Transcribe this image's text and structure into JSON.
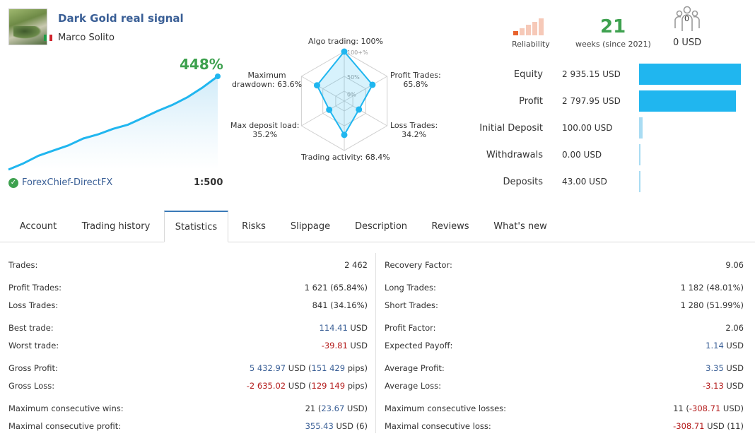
{
  "signal": {
    "title": "Dark Gold real signal",
    "author": "Marco Solito",
    "growth": "448%",
    "growth_curve": [
      0,
      18,
      40,
      55,
      70,
      90,
      102,
      118,
      130,
      150,
      170,
      188,
      210,
      238,
      270
    ],
    "broker": "ForexChief-DirectFX",
    "leverage": "1:500"
  },
  "radar": {
    "scale_labels": [
      "100+%",
      "50%",
      "0%"
    ],
    "axes": [
      {
        "label": "Algo trading: 100%",
        "value": 100
      },
      {
        "label": "Profit Trades:\n65.8%",
        "value": 65.8
      },
      {
        "label": "Loss Trades:\n34.2%",
        "value": 34.2
      },
      {
        "label": "Trading activity: 68.4%",
        "value": 68.4
      },
      {
        "label": "Max deposit load:\n35.2%",
        "value": 35.2
      },
      {
        "label": "Maximum\ndrawdown: 63.6%",
        "value": 63.6
      }
    ]
  },
  "reliability": {
    "label": "Reliability",
    "filled_bars": 1,
    "total_bars": 5
  },
  "weeks": {
    "number": "21",
    "label": "weeks (since 2021)"
  },
  "subscribers": {
    "count": "0",
    "price": "0 USD"
  },
  "financials": [
    {
      "label": "Equity",
      "value": "2 935.15 USD",
      "fraction": 1.0
    },
    {
      "label": "Profit",
      "value": "2 797.95 USD",
      "fraction": 0.953
    },
    {
      "label": "Initial Deposit",
      "value": "100.00 USD",
      "fraction": 0.034
    },
    {
      "label": "Withdrawals",
      "value": "0.00 USD",
      "fraction": 0.0
    },
    {
      "label": "Deposits",
      "value": "43.00 USD",
      "fraction": 0.015
    }
  ],
  "tabs": [
    "Account",
    "Trading history",
    "Statistics",
    "Risks",
    "Slippage",
    "Description",
    "Reviews",
    "What's new"
  ],
  "active_tab": "Statistics",
  "stats_left": [
    {
      "label": "Trades:",
      "value": [
        {
          "t": "2 462",
          "c": ""
        }
      ]
    },
    {
      "label": "Profit Trades:",
      "value": [
        {
          "t": "1 621 (65.84%)",
          "c": ""
        }
      ]
    },
    {
      "label": "Loss Trades:",
      "value": [
        {
          "t": "841 (34.16%)",
          "c": ""
        }
      ]
    },
    {
      "label": "Best trade:",
      "value": [
        {
          "t": "114.41",
          "c": "blue"
        },
        {
          "t": " USD",
          "c": ""
        }
      ]
    },
    {
      "label": "Worst trade:",
      "value": [
        {
          "t": "-39.81",
          "c": "red"
        },
        {
          "t": " USD",
          "c": ""
        }
      ]
    },
    {
      "label": "Gross Profit:",
      "value": [
        {
          "t": "5 432.97",
          "c": "blue"
        },
        {
          "t": " USD (",
          "c": ""
        },
        {
          "t": "151 429",
          "c": "blue"
        },
        {
          "t": " pips)",
          "c": ""
        }
      ]
    },
    {
      "label": "Gross Loss:",
      "value": [
        {
          "t": "-2 635.02",
          "c": "red"
        },
        {
          "t": " USD (",
          "c": ""
        },
        {
          "t": "129 149",
          "c": "red"
        },
        {
          "t": " pips)",
          "c": ""
        }
      ]
    },
    {
      "label": "Maximum consecutive wins:",
      "value": [
        {
          "t": "21 (",
          "c": ""
        },
        {
          "t": "23.67",
          "c": "blue"
        },
        {
          "t": " USD)",
          "c": ""
        }
      ]
    },
    {
      "label": "Maximal consecutive profit:",
      "value": [
        {
          "t": "355.43",
          "c": "blue"
        },
        {
          "t": " USD (6)",
          "c": ""
        }
      ]
    }
  ],
  "stats_right": [
    {
      "label": "Recovery Factor:",
      "value": [
        {
          "t": "9.06",
          "c": ""
        }
      ]
    },
    {
      "label": "Long Trades:",
      "value": [
        {
          "t": "1 182 (48.01%)",
          "c": ""
        }
      ]
    },
    {
      "label": "Short Trades:",
      "value": [
        {
          "t": "1 280 (51.99%)",
          "c": ""
        }
      ]
    },
    {
      "label": "Profit Factor:",
      "value": [
        {
          "t": "2.06",
          "c": ""
        }
      ]
    },
    {
      "label": "Expected Payoff:",
      "value": [
        {
          "t": "1.14",
          "c": "blue"
        },
        {
          "t": " USD",
          "c": ""
        }
      ]
    },
    {
      "label": "Average Profit:",
      "value": [
        {
          "t": "3.35",
          "c": "blue"
        },
        {
          "t": " USD",
          "c": ""
        }
      ]
    },
    {
      "label": "Average Loss:",
      "value": [
        {
          "t": "-3.13",
          "c": "red"
        },
        {
          "t": " USD",
          "c": ""
        }
      ]
    },
    {
      "label": "Maximum consecutive losses:",
      "value": [
        {
          "t": "11 (",
          "c": ""
        },
        {
          "t": "-308.71",
          "c": "red"
        },
        {
          "t": " USD)",
          "c": ""
        }
      ]
    },
    {
      "label": "Maximal consecutive loss:",
      "value": [
        {
          "t": "-308.71",
          "c": "red"
        },
        {
          "t": " USD (11)",
          "c": ""
        }
      ]
    }
  ],
  "colors": {
    "accent_blue": "#20b6ef",
    "title_blue": "#3a5f96",
    "positive_green": "#3ea14f",
    "negative_red": "#b41c1c",
    "reliability_active": "#e8622c",
    "reliability_inactive": "#f6c9b8"
  },
  "icons": {
    "broker_verified": "check-shield-icon",
    "subscribers": "people-icon",
    "flag": "italy-flag-icon"
  }
}
